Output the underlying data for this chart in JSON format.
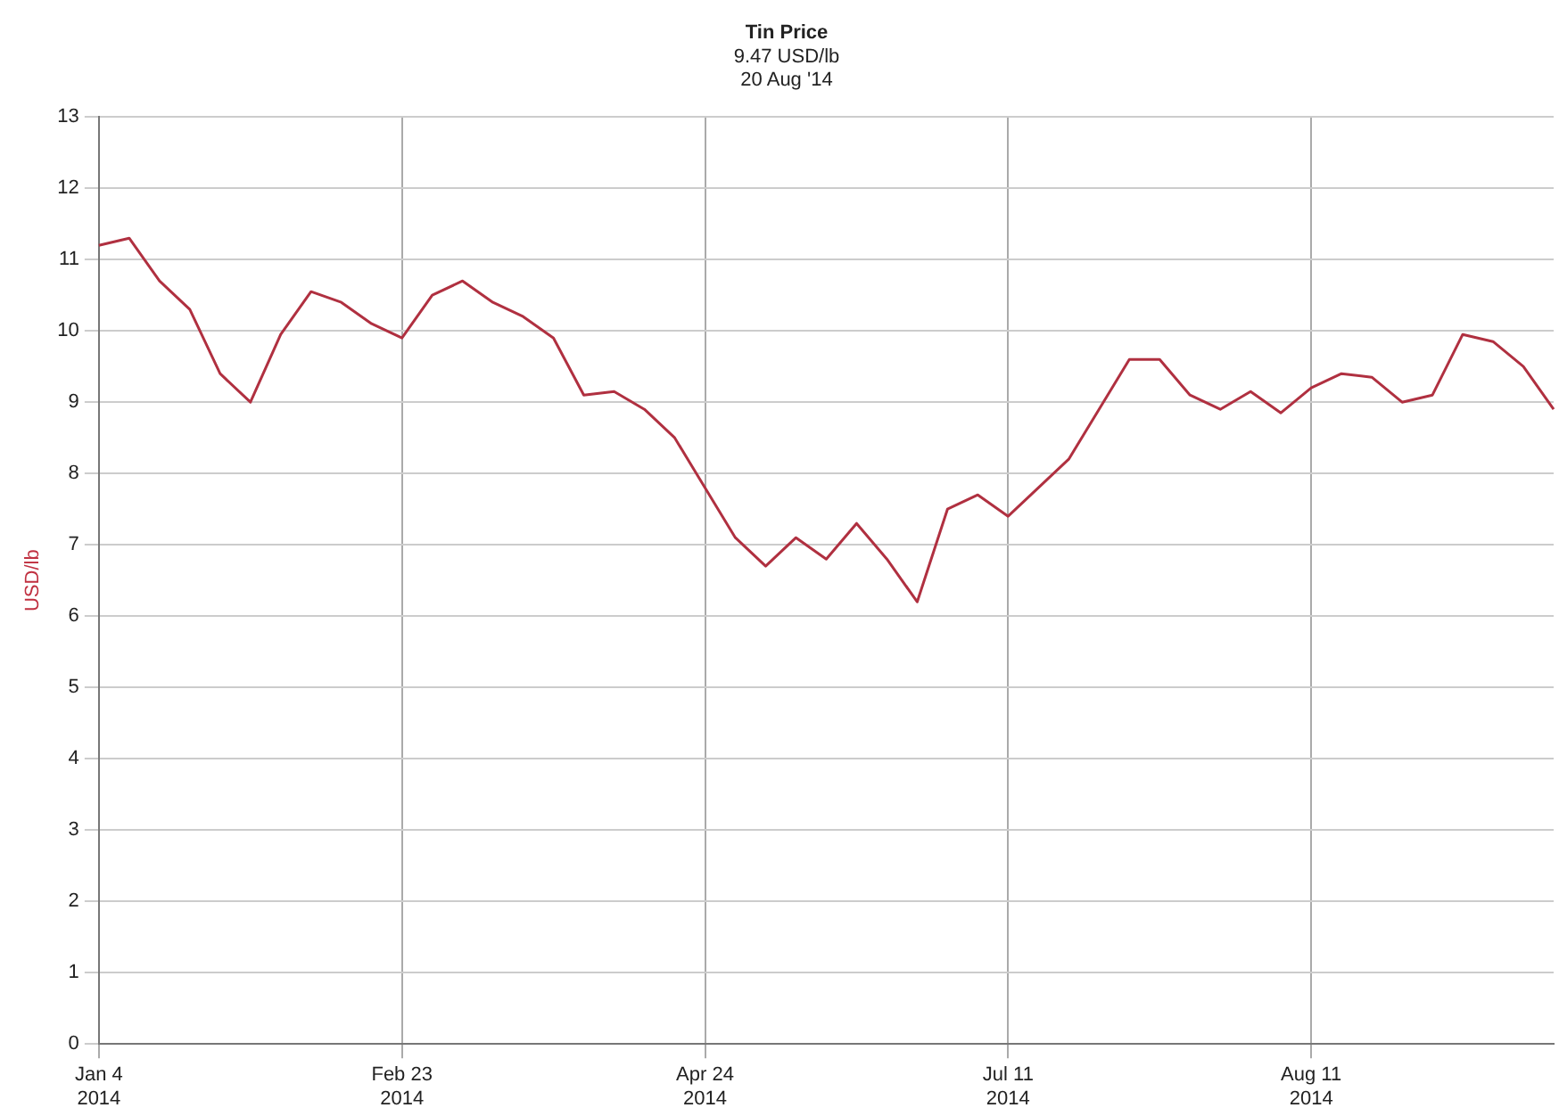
{
  "chart_data": {
    "type": "line",
    "title": "Tin Price",
    "subtitle": "9.47 USD/lb\n20 Aug '14",
    "ylabel": "USD/lb",
    "categories": [
      "Jan 4\n2014",
      null,
      null,
      null,
      null,
      null,
      null,
      null,
      null,
      null,
      "Feb 23\n2014",
      null,
      null,
      null,
      null,
      null,
      null,
      null,
      null,
      null,
      "Apr 24\n2014",
      null,
      null,
      null,
      null,
      null,
      null,
      null,
      null,
      null,
      "Jul 11\n2014",
      null,
      null,
      null,
      null,
      null,
      null,
      null,
      null,
      null,
      "Aug 11\n2014",
      null,
      null,
      null,
      null,
      null,
      null,
      null,
      null
    ],
    "series": [
      {
        "color": "#b03040",
        "values": [
          11.2,
          11.3,
          10.7,
          10.3,
          9.4,
          9.0,
          9.95,
          10.55,
          10.4,
          10.1,
          9.9,
          10.5,
          10.7,
          10.4,
          10.2,
          9.9,
          9.1,
          9.15,
          8.9,
          8.5,
          7.8,
          7.1,
          6.7,
          7.1,
          6.8,
          7.3,
          6.8,
          6.2,
          7.5,
          7.7,
          7.4,
          7.8,
          8.2,
          8.9,
          9.6,
          9.6,
          9.1,
          8.9,
          9.15,
          8.85,
          9.2,
          9.4,
          9.35,
          9.0,
          9.1,
          9.95,
          9.85,
          9.5,
          8.9
        ]
      }
    ],
    "ylim": [
      0,
      13
    ],
    "yticks": [
      0,
      1,
      2,
      3,
      4,
      5,
      6,
      7,
      8,
      9,
      10,
      11,
      12,
      13
    ],
    "grid": true,
    "legend": false,
    "marker": "none",
    "line_style": "solid"
  }
}
